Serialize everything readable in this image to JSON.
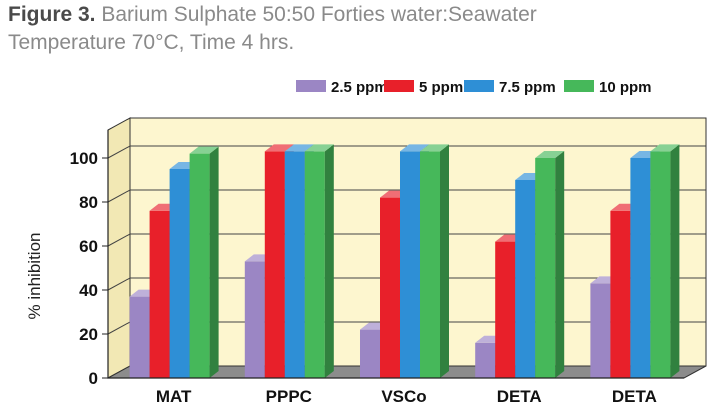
{
  "figure": {
    "label": "Figure 3.",
    "title": "Barium Sulphate 50:50 Forties water:Seawater",
    "subtitle": "Temperature 70°C, Time 4 hrs."
  },
  "chart_data": {
    "type": "bar",
    "ylabel": "% inhibition",
    "xlabel": "",
    "ylim": [
      0,
      100
    ],
    "yticks": [
      0,
      20,
      40,
      60,
      80,
      100
    ],
    "grid": true,
    "legend_position": "top-right",
    "categories": [
      "MAT",
      "PPPC",
      "VSCo",
      "DETA",
      "DETA"
    ],
    "series": [
      {
        "name": "2.5 ppm",
        "color": "#9b86c4",
        "values": [
          37,
          53,
          22,
          16,
          43
        ]
      },
      {
        "name": "5 ppm",
        "color": "#e8202a",
        "values": [
          76,
          103,
          82,
          62,
          76
        ]
      },
      {
        "name": "7.5 ppm",
        "color": "#2e8fd6",
        "values": [
          95,
          103,
          103,
          90,
          100
        ]
      },
      {
        "name": "10 ppm",
        "color": "#46b85a",
        "values": [
          102,
          103,
          103,
          100,
          103
        ]
      }
    ]
  }
}
